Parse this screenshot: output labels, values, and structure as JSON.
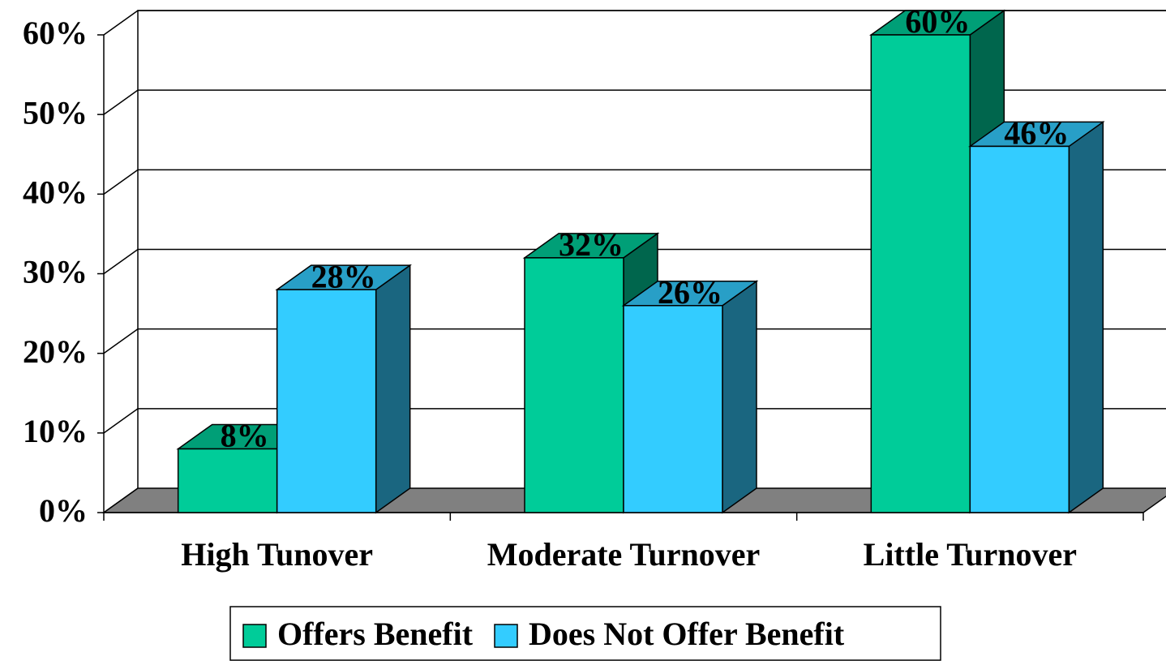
{
  "chart_data": {
    "type": "bar3d",
    "categories": [
      "High Tunover",
      "Moderate Turnover",
      "Little Turnover"
    ],
    "series": [
      {
        "name": "Offers Benefit",
        "color": "#00cc99",
        "values": [
          8,
          32,
          60
        ],
        "value_labels": [
          "8%",
          "32%",
          "60%"
        ]
      },
      {
        "name": "Does Not Offer Benefit",
        "color": "#33ccff",
        "values": [
          28,
          26,
          46
        ],
        "value_labels": [
          "28%",
          "26%",
          "46%"
        ]
      }
    ],
    "ylim": [
      0,
      60
    ],
    "yticks": [
      {
        "value": 0,
        "label": "0%"
      },
      {
        "value": 10,
        "label": "10%"
      },
      {
        "value": 20,
        "label": "20%"
      },
      {
        "value": 30,
        "label": "30%"
      },
      {
        "value": 40,
        "label": "40%"
      },
      {
        "value": 50,
        "label": "50%"
      },
      {
        "value": 60,
        "label": "60%"
      }
    ],
    "grid": true,
    "legend": "bottom"
  }
}
